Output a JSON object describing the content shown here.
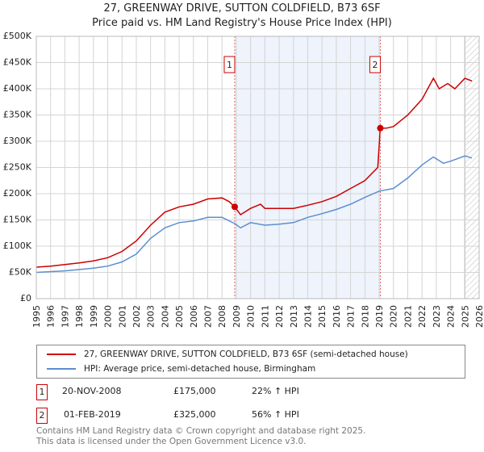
{
  "title": "27, GREENWAY DRIVE, SUTTON COLDFIELD, B73 6SF",
  "subtitle": "Price paid vs. HM Land Registry's House Price Index (HPI)",
  "chart_data": {
    "type": "line",
    "title": "27, GREENWAY DRIVE, SUTTON COLDFIELD, B73 6SF",
    "subtitle": "Price paid vs. HM Land Registry's House Price Index (HPI)",
    "xlim": [
      1995,
      2026
    ],
    "ylim": [
      0,
      500000
    ],
    "x_ticks": [
      "1995",
      "1996",
      "1997",
      "1998",
      "1999",
      "2000",
      "2001",
      "2002",
      "2003",
      "2004",
      "2005",
      "2006",
      "2007",
      "2008",
      "2009",
      "2010",
      "2011",
      "2012",
      "2013",
      "2014",
      "2015",
      "2016",
      "2017",
      "2018",
      "2019",
      "2020",
      "2021",
      "2022",
      "2023",
      "2024",
      "2025",
      "2026"
    ],
    "y_ticks": [
      {
        "v": 0,
        "label": "£0"
      },
      {
        "v": 50000,
        "label": "£50K"
      },
      {
        "v": 100000,
        "label": "£100K"
      },
      {
        "v": 150000,
        "label": "£150K"
      },
      {
        "v": 200000,
        "label": "£200K"
      },
      {
        "v": 250000,
        "label": "£250K"
      },
      {
        "v": 300000,
        "label": "£300K"
      },
      {
        "v": 350000,
        "label": "£350K"
      },
      {
        "v": 400000,
        "label": "£400K"
      },
      {
        "v": 450000,
        "label": "£450K"
      },
      {
        "v": 500000,
        "label": "£500K"
      }
    ],
    "grid": true,
    "shaded_range": [
      2008.89,
      2019.08
    ],
    "forecast_start": 2025.0,
    "series": [
      {
        "name": "27, GREENWAY DRIVE, SUTTON COLDFIELD, B73 6SF (semi-detached house)",
        "color": "#cc0000",
        "x": [
          1995,
          1996,
          1997,
          1998,
          1999,
          2000,
          2001,
          2002,
          2003,
          2004,
          2005,
          2006,
          2007,
          2008,
          2008.5,
          2008.89,
          2009.3,
          2010,
          2010.7,
          2011,
          2012,
          2013,
          2014,
          2015,
          2016,
          2017,
          2018,
          2018.9,
          2019.08,
          2019.5,
          2020,
          2021,
          2022,
          2022.8,
          2023.2,
          2023.8,
          2024.3,
          2025,
          2025.5
        ],
        "y": [
          60000,
          62000,
          65000,
          68000,
          72000,
          78000,
          90000,
          110000,
          140000,
          165000,
          175000,
          180000,
          190000,
          192000,
          185000,
          175000,
          160000,
          172000,
          180000,
          172000,
          172000,
          172000,
          178000,
          185000,
          195000,
          210000,
          225000,
          250000,
          325000,
          325000,
          328000,
          350000,
          380000,
          420000,
          400000,
          410000,
          400000,
          420000,
          415000
        ]
      },
      {
        "name": "HPI: Average price, semi-detached house, Birmingham",
        "color": "#5b8fd0",
        "x": [
          1995,
          1997,
          1999,
          2000,
          2001,
          2002,
          2003,
          2004,
          2005,
          2006,
          2007,
          2008,
          2008.9,
          2009.3,
          2010,
          2011,
          2012,
          2013,
          2014,
          2015,
          2016,
          2017,
          2018,
          2019,
          2020,
          2021,
          2022,
          2022.8,
          2023.5,
          2024,
          2025,
          2025.5
        ],
        "y": [
          50000,
          53000,
          58000,
          62000,
          70000,
          85000,
          115000,
          135000,
          145000,
          148000,
          155000,
          155000,
          143000,
          135000,
          145000,
          140000,
          142000,
          145000,
          155000,
          162000,
          170000,
          180000,
          193000,
          205000,
          210000,
          230000,
          255000,
          270000,
          258000,
          262000,
          272000,
          268000
        ]
      }
    ],
    "annotations": [
      {
        "label": "1",
        "x": 2008.89,
        "y": 175000
      },
      {
        "label": "2",
        "x": 2019.08,
        "y": 325000
      }
    ],
    "legend_position": "bottom"
  },
  "legend": [
    {
      "label": "27, GREENWAY DRIVE, SUTTON COLDFIELD, B73 6SF (semi-detached house)",
      "color": "#cc0000"
    },
    {
      "label": "HPI: Average price, semi-detached house, Birmingham",
      "color": "#5b8fd0"
    }
  ],
  "transactions": [
    {
      "num": "1",
      "date": "20-NOV-2008",
      "price": "£175,000",
      "hpi": "22% ↑ HPI"
    },
    {
      "num": "2",
      "date": "01-FEB-2019",
      "price": "£325,000",
      "hpi": "56% ↑ HPI"
    }
  ],
  "footer": {
    "line1": "Contains HM Land Registry data © Crown copyright and database right 2025.",
    "line2": "This data is licensed under the Open Government Licence v3.0."
  }
}
